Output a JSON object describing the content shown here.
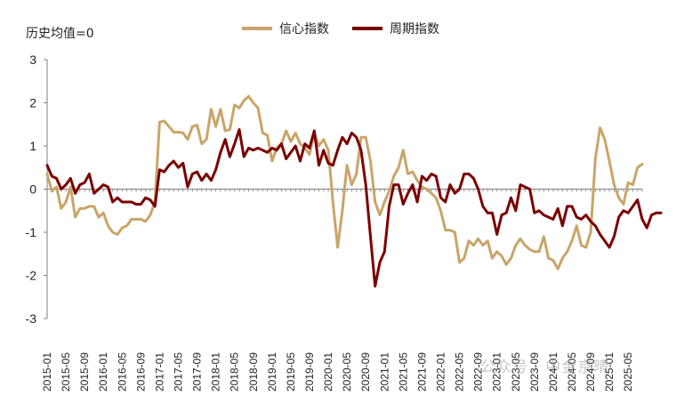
{
  "chart_data": {
    "type": "line",
    "unit_label": "历史均值=0",
    "ylim": [
      -3,
      3
    ],
    "y_ticks": [
      "3",
      "2",
      "1",
      "0",
      "-1",
      "-2",
      "-3"
    ],
    "x_start": "2015-01",
    "x_end": "2025-08",
    "x_tick_labels": [
      "2015-01",
      "2015-05",
      "2015-09",
      "2016-01",
      "2016-05",
      "2016-09",
      "2017-01",
      "2017-05",
      "2017-09",
      "2018-01",
      "2018-05",
      "2018-09",
      "2019-01",
      "2019-05",
      "2019-09",
      "2020-01",
      "2020-05",
      "2020-09",
      "2021-01",
      "2021-05",
      "2021-09",
      "2022-01",
      "2022-05",
      "2022-09",
      "2023-01",
      "2023-05",
      "2023-09",
      "2024-01",
      "2024-05",
      "2024-09",
      "2025-01",
      "2025-05"
    ],
    "grid": false,
    "legend_position": "top",
    "series": [
      {
        "name": "信心指数",
        "color": "#C8A56A",
        "points": [
          [
            "2015-01",
            0.35
          ],
          [
            "2015-02",
            -0.05
          ],
          [
            "2015-03",
            0.05
          ],
          [
            "2015-04",
            -0.45
          ],
          [
            "2015-05",
            -0.3
          ],
          [
            "2015-06",
            0.05
          ],
          [
            "2015-07",
            -0.65
          ],
          [
            "2015-08",
            -0.45
          ],
          [
            "2015-09",
            -0.45
          ],
          [
            "2015-10",
            -0.4
          ],
          [
            "2015-11",
            -0.4
          ],
          [
            "2015-12",
            -0.65
          ],
          [
            "2016-01",
            -0.55
          ],
          [
            "2016-02",
            -0.85
          ],
          [
            "2016-03",
            -1.0
          ],
          [
            "2016-04",
            -1.05
          ],
          [
            "2016-05",
            -0.9
          ],
          [
            "2016-06",
            -0.85
          ],
          [
            "2016-07",
            -0.7
          ],
          [
            "2016-08",
            -0.7
          ],
          [
            "2016-09",
            -0.7
          ],
          [
            "2016-10",
            -0.75
          ],
          [
            "2016-11",
            -0.6
          ],
          [
            "2016-12",
            -0.3
          ],
          [
            "2017-01",
            1.55
          ],
          [
            "2017-02",
            1.58
          ],
          [
            "2017-03",
            1.45
          ],
          [
            "2017-04",
            1.32
          ],
          [
            "2017-05",
            1.32
          ],
          [
            "2017-06",
            1.3
          ],
          [
            "2017-07",
            1.15
          ],
          [
            "2017-08",
            1.45
          ],
          [
            "2017-09",
            1.48
          ],
          [
            "2017-10",
            1.05
          ],
          [
            "2017-11",
            1.15
          ],
          [
            "2017-12",
            1.85
          ],
          [
            "2018-01",
            1.45
          ],
          [
            "2018-02",
            1.85
          ],
          [
            "2018-03",
            1.35
          ],
          [
            "2018-04",
            1.38
          ],
          [
            "2018-05",
            1.95
          ],
          [
            "2018-06",
            1.88
          ],
          [
            "2018-07",
            2.05
          ],
          [
            "2018-08",
            2.15
          ],
          [
            "2018-09",
            2.0
          ],
          [
            "2018-10",
            1.88
          ],
          [
            "2018-11",
            1.3
          ],
          [
            "2018-12",
            1.25
          ],
          [
            "2019-01",
            0.65
          ],
          [
            "2019-02",
            0.95
          ],
          [
            "2019-03",
            1.05
          ],
          [
            "2019-04",
            1.35
          ],
          [
            "2019-05",
            1.1
          ],
          [
            "2019-06",
            1.3
          ],
          [
            "2019-07",
            1.05
          ],
          [
            "2019-08",
            0.95
          ],
          [
            "2019-09",
            0.8
          ],
          [
            "2019-10",
            1.3
          ],
          [
            "2019-11",
            1.0
          ],
          [
            "2019-12",
            1.15
          ],
          [
            "2020-01",
            0.9
          ],
          [
            "2020-02",
            -0.3
          ],
          [
            "2020-03",
            -1.35
          ],
          [
            "2020-04",
            -0.5
          ],
          [
            "2020-05",
            0.55
          ],
          [
            "2020-06",
            0.1
          ],
          [
            "2020-07",
            0.35
          ],
          [
            "2020-08",
            1.2
          ],
          [
            "2020-09",
            1.2
          ],
          [
            "2020-10",
            0.65
          ],
          [
            "2020-11",
            -0.3
          ],
          [
            "2020-12",
            -0.6
          ],
          [
            "2021-01",
            -0.3
          ],
          [
            "2021-02",
            -0.05
          ],
          [
            "2021-03",
            0.3
          ],
          [
            "2021-04",
            0.5
          ],
          [
            "2021-05",
            0.9
          ],
          [
            "2021-06",
            0.35
          ],
          [
            "2021-07",
            0.4
          ],
          [
            "2021-08",
            0.2
          ],
          [
            "2021-09",
            0.05
          ],
          [
            "2021-10",
            0.0
          ],
          [
            "2021-11",
            -0.1
          ],
          [
            "2021-12",
            -0.2
          ],
          [
            "2022-01",
            -0.5
          ],
          [
            "2022-02",
            -0.95
          ],
          [
            "2022-03",
            -0.95
          ],
          [
            "2022-04",
            -1.0
          ],
          [
            "2022-05",
            -1.7
          ],
          [
            "2022-06",
            -1.6
          ],
          [
            "2022-07",
            -1.2
          ],
          [
            "2022-08",
            -1.3
          ],
          [
            "2022-09",
            -1.15
          ],
          [
            "2022-10",
            -1.3
          ],
          [
            "2022-11",
            -1.2
          ],
          [
            "2022-12",
            -1.6
          ],
          [
            "2023-01",
            -1.45
          ],
          [
            "2023-02",
            -1.55
          ],
          [
            "2023-03",
            -1.75
          ],
          [
            "2023-04",
            -1.6
          ],
          [
            "2023-05",
            -1.3
          ],
          [
            "2023-06",
            -1.15
          ],
          [
            "2023-07",
            -1.3
          ],
          [
            "2023-08",
            -1.4
          ],
          [
            "2023-09",
            -1.45
          ],
          [
            "2023-10",
            -1.45
          ],
          [
            "2023-11",
            -1.1
          ],
          [
            "2023-12",
            -1.6
          ],
          [
            "2024-01",
            -1.65
          ],
          [
            "2024-02",
            -1.85
          ],
          [
            "2024-03",
            -1.6
          ],
          [
            "2024-04",
            -1.45
          ],
          [
            "2024-05",
            -1.2
          ],
          [
            "2024-06",
            -0.85
          ],
          [
            "2024-07",
            -1.3
          ],
          [
            "2024-08",
            -1.35
          ],
          [
            "2024-09",
            -1.0
          ],
          [
            "2024-10",
            0.7
          ],
          [
            "2024-11",
            1.42
          ],
          [
            "2024-12",
            1.15
          ],
          [
            "2025-01",
            0.65
          ],
          [
            "2025-02",
            0.1
          ],
          [
            "2025-03",
            -0.2
          ],
          [
            "2025-04",
            -0.35
          ],
          [
            "2025-05",
            0.15
          ],
          [
            "2025-06",
            0.1
          ],
          [
            "2025-07",
            0.5
          ],
          [
            "2025-08",
            0.58
          ]
        ]
      },
      {
        "name": "周期指数",
        "color": "#7A0000",
        "points": [
          [
            "2015-01",
            0.55
          ],
          [
            "2015-02",
            0.3
          ],
          [
            "2015-03",
            0.25
          ],
          [
            "2015-04",
            0.0
          ],
          [
            "2015-05",
            0.1
          ],
          [
            "2015-06",
            0.25
          ],
          [
            "2015-07",
            -0.1
          ],
          [
            "2015-08",
            0.1
          ],
          [
            "2015-09",
            0.15
          ],
          [
            "2015-10",
            0.35
          ],
          [
            "2015-11",
            -0.1
          ],
          [
            "2015-12",
            0.0
          ],
          [
            "2016-01",
            0.1
          ],
          [
            "2016-02",
            0.05
          ],
          [
            "2016-03",
            -0.3
          ],
          [
            "2016-04",
            -0.2
          ],
          [
            "2016-05",
            -0.3
          ],
          [
            "2016-06",
            -0.3
          ],
          [
            "2016-07",
            -0.3
          ],
          [
            "2016-08",
            -0.35
          ],
          [
            "2016-09",
            -0.35
          ],
          [
            "2016-10",
            -0.2
          ],
          [
            "2016-11",
            -0.25
          ],
          [
            "2016-12",
            -0.4
          ],
          [
            "2017-01",
            0.45
          ],
          [
            "2017-02",
            0.4
          ],
          [
            "2017-03",
            0.55
          ],
          [
            "2017-04",
            0.65
          ],
          [
            "2017-05",
            0.5
          ],
          [
            "2017-06",
            0.6
          ],
          [
            "2017-07",
            0.05
          ],
          [
            "2017-08",
            0.35
          ],
          [
            "2017-09",
            0.4
          ],
          [
            "2017-10",
            0.2
          ],
          [
            "2017-11",
            0.35
          ],
          [
            "2017-12",
            0.2
          ],
          [
            "2018-01",
            0.45
          ],
          [
            "2018-02",
            0.85
          ],
          [
            "2018-03",
            1.15
          ],
          [
            "2018-04",
            0.75
          ],
          [
            "2018-05",
            1.05
          ],
          [
            "2018-06",
            1.38
          ],
          [
            "2018-07",
            0.75
          ],
          [
            "2018-08",
            0.95
          ],
          [
            "2018-09",
            0.9
          ],
          [
            "2018-10",
            0.95
          ],
          [
            "2018-11",
            0.9
          ],
          [
            "2018-12",
            0.85
          ],
          [
            "2019-01",
            0.95
          ],
          [
            "2019-02",
            0.9
          ],
          [
            "2019-03",
            1.05
          ],
          [
            "2019-04",
            0.7
          ],
          [
            "2019-05",
            0.85
          ],
          [
            "2019-06",
            1.0
          ],
          [
            "2019-07",
            0.65
          ],
          [
            "2019-08",
            1.05
          ],
          [
            "2019-09",
            0.95
          ],
          [
            "2019-10",
            1.35
          ],
          [
            "2019-11",
            0.55
          ],
          [
            "2019-12",
            0.9
          ],
          [
            "2020-01",
            0.6
          ],
          [
            "2020-02",
            0.55
          ],
          [
            "2020-03",
            0.9
          ],
          [
            "2020-04",
            1.2
          ],
          [
            "2020-05",
            1.05
          ],
          [
            "2020-06",
            1.3
          ],
          [
            "2020-07",
            1.2
          ],
          [
            "2020-08",
            0.9
          ],
          [
            "2020-09",
            0.1
          ],
          [
            "2020-10",
            -1.1
          ],
          [
            "2020-11",
            -2.25
          ],
          [
            "2020-12",
            -1.7
          ],
          [
            "2021-01",
            -1.45
          ],
          [
            "2021-02",
            -0.4
          ],
          [
            "2021-03",
            0.1
          ],
          [
            "2021-04",
            0.1
          ],
          [
            "2021-05",
            -0.35
          ],
          [
            "2021-06",
            -0.1
          ],
          [
            "2021-07",
            0.1
          ],
          [
            "2021-08",
            -0.3
          ],
          [
            "2021-09",
            0.3
          ],
          [
            "2021-10",
            0.2
          ],
          [
            "2021-11",
            0.35
          ],
          [
            "2021-12",
            0.3
          ],
          [
            "2022-01",
            -0.2
          ],
          [
            "2022-02",
            -0.3
          ],
          [
            "2022-03",
            0.1
          ],
          [
            "2022-04",
            -0.1
          ],
          [
            "2022-05",
            0.0
          ],
          [
            "2022-06",
            0.35
          ],
          [
            "2022-07",
            0.35
          ],
          [
            "2022-08",
            0.25
          ],
          [
            "2022-09",
            0.0
          ],
          [
            "2022-10",
            -0.4
          ],
          [
            "2022-11",
            -0.55
          ],
          [
            "2022-12",
            -0.55
          ],
          [
            "2023-01",
            -1.05
          ],
          [
            "2023-02",
            -0.6
          ],
          [
            "2023-03",
            -0.55
          ],
          [
            "2023-04",
            -0.2
          ],
          [
            "2023-05",
            -0.5
          ],
          [
            "2023-06",
            0.1
          ],
          [
            "2023-07",
            0.05
          ],
          [
            "2023-08",
            0.0
          ],
          [
            "2023-09",
            -0.55
          ],
          [
            "2023-10",
            -0.5
          ],
          [
            "2023-11",
            -0.6
          ],
          [
            "2023-12",
            -0.65
          ],
          [
            "2024-01",
            -0.7
          ],
          [
            "2024-02",
            -0.45
          ],
          [
            "2024-03",
            -0.85
          ],
          [
            "2024-04",
            -0.4
          ],
          [
            "2024-05",
            -0.4
          ],
          [
            "2024-06",
            -0.65
          ],
          [
            "2024-07",
            -0.7
          ],
          [
            "2024-08",
            -0.6
          ],
          [
            "2024-09",
            -0.75
          ],
          [
            "2024-10",
            -0.85
          ],
          [
            "2024-11",
            -1.05
          ],
          [
            "2024-12",
            -1.2
          ],
          [
            "2025-01",
            -1.35
          ],
          [
            "2025-02",
            -1.1
          ],
          [
            "2025-03",
            -0.65
          ],
          [
            "2025-04",
            -0.5
          ],
          [
            "2025-05",
            -0.55
          ],
          [
            "2025-06",
            -0.4
          ],
          [
            "2025-07",
            -0.25
          ],
          [
            "2025-08",
            -0.7
          ],
          [
            "2025-09",
            -0.9
          ],
          [
            "2025-10",
            -0.6
          ],
          [
            "2025-11",
            -0.55
          ],
          [
            "2025-12",
            -0.55
          ]
        ]
      }
    ]
  },
  "watermark": "公众号 · 中金京晴"
}
